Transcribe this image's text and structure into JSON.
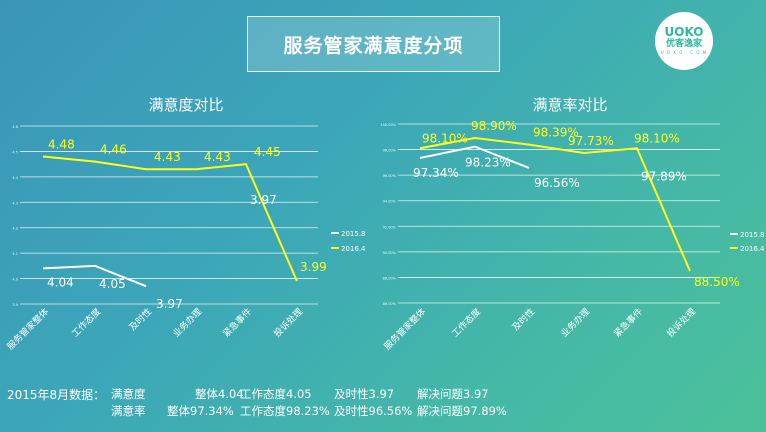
{
  "slide": {
    "title": "服务管家满意度分项",
    "logo": {
      "brand": "UOKO",
      "name": "优客逸家",
      "tagline": "U O K O . C O M"
    }
  },
  "colors": {
    "s2015": "#ffffff",
    "s2016": "#ffff1a",
    "grid": "#ffffff"
  },
  "chart_data": [
    {
      "type": "line",
      "title": "满意度对比",
      "categories": [
        "服务管家整体",
        "工作态度",
        "及时性",
        "业务办理",
        "紧急事件",
        "投诉处理"
      ],
      "series": [
        {
          "name": "2015.8",
          "values": [
            4.04,
            4.05,
            3.97,
            null,
            null,
            null
          ],
          "labels": [
            "4.04",
            "4.05",
            "3.97",
            "",
            "",
            ""
          ],
          "color": "#ffffff"
        },
        {
          "name": "2016.4",
          "values": [
            4.48,
            4.46,
            4.43,
            4.43,
            4.45,
            3.99
          ],
          "labels": [
            "4.48",
            "4.46",
            "4.43",
            "4.43",
            "4.45",
            "3.99"
          ],
          "color": "#ffff1a"
        }
      ],
      "extra_labels": [
        {
          "text": "3.97",
          "category": "紧急事件"
        }
      ],
      "y_ticks": [
        "4.6",
        "4.5",
        "4.4",
        "4.3",
        "4.2",
        "4.1",
        "4.0",
        "3.9"
      ],
      "ylim": [
        3.9,
        4.6
      ],
      "grid": true,
      "legend_position": "right"
    },
    {
      "type": "line",
      "title": "满意率对比",
      "categories": [
        "服务管家整体",
        "工作态度",
        "及时性",
        "业务办理",
        "紧急事件",
        "投诉处理"
      ],
      "series": [
        {
          "name": "2015.8",
          "values": [
            97.34,
            98.23,
            96.56,
            null,
            null,
            null
          ],
          "labels": [
            "97.34%",
            "98.23%",
            "96.56%",
            "",
            "",
            ""
          ],
          "color": "#ffffff"
        },
        {
          "name": "2016.4",
          "values": [
            98.1,
            98.9,
            98.39,
            97.73,
            98.1,
            88.5
          ],
          "labels": [
            "98.10%",
            "98.90%",
            "98.39%",
            "97.73%",
            "98.10%",
            "88.50%"
          ],
          "color": "#ffff1a"
        }
      ],
      "extra_labels": [
        {
          "text": "97.89%",
          "category": "紧急事件"
        }
      ],
      "y_ticks": [
        "100.00%",
        "98.00%",
        "96.00%",
        "94.00%",
        "92.00%",
        "90.00%",
        "88.00%",
        "86.00%"
      ],
      "ylim": [
        86,
        100
      ],
      "grid": true,
      "legend_position": "right"
    }
  ],
  "footer": {
    "prefix": "2015年8月数据：",
    "row1": [
      "满意度",
      "整体4.04",
      "工作态度4.05",
      "及时性3.97",
      "解决问题3.97"
    ],
    "row2": [
      "满意率",
      "整体97.34%",
      "工作态度98.23%",
      "及时性96.56%",
      "解决问题97.89%"
    ]
  }
}
